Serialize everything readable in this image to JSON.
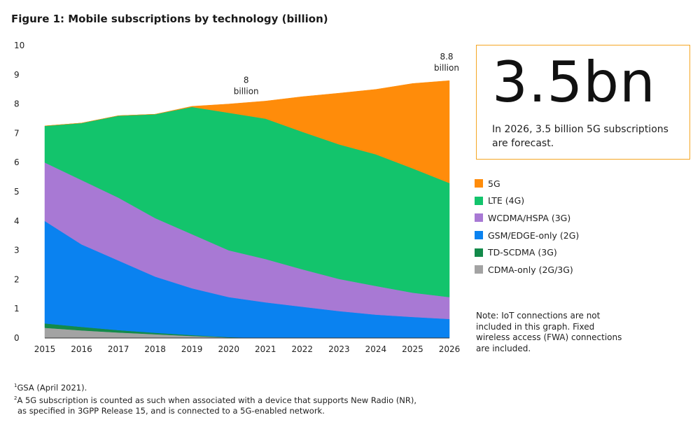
{
  "title": "Figure 1: Mobile subscriptions by technology (billion)",
  "colors": {
    "5g": "#ff8c0a",
    "lte": "#13c46c",
    "wcdma": "#a879d4",
    "gsm": "#0a82f0",
    "tdscdma": "#138a4a",
    "cdma": "#a3a3a3"
  },
  "callout": {
    "value": "3.5bn",
    "description": "In 2026, 3.5 billion 5G subscriptions are forecast."
  },
  "legend": [
    {
      "key": "5g",
      "label": "5G"
    },
    {
      "key": "lte",
      "label": "LTE (4G)"
    },
    {
      "key": "wcdma",
      "label": "WCDMA/HSPA (3G)"
    },
    {
      "key": "gsm",
      "label": "GSM/EDGE-only (2G)"
    },
    {
      "key": "tdscdma",
      "label": "TD-SCDMA (3G)"
    },
    {
      "key": "cdma",
      "label": "CDMA-only (2G/3G)"
    }
  ],
  "note": "Note: IoT connections are not included in this graph. Fixed wireless access (FWA) connections are included.",
  "footnotes": [
    {
      "sup": "1",
      "text": "GSA (April 2021)."
    },
    {
      "sup": "2",
      "text": "A 5G subscription is counted as such when associated with a device that supports New Radio (NR),"
    },
    {
      "sup": "",
      "text": "as specified in 3GPP Release 15, and is connected to a 5G-enabled network."
    }
  ],
  "chart_data": {
    "type": "area",
    "stacked": true,
    "x": [
      "2015",
      "2016",
      "2017",
      "2018",
      "2019",
      "2020",
      "2021",
      "2022",
      "2023",
      "2024",
      "2025",
      "2026"
    ],
    "ylim": [
      0,
      10
    ],
    "yticks": [
      "0",
      "1",
      "2",
      "3",
      "4",
      "5",
      "6",
      "7",
      "8",
      "9",
      "10"
    ],
    "grid": false,
    "series": [
      {
        "name": "CDMA-only (2G/3G)",
        "key": "cdma",
        "values": [
          0.35,
          0.26,
          0.19,
          0.13,
          0.07,
          0.02,
          0.0,
          0.0,
          0.0,
          0.0,
          0.0,
          0.0
        ]
      },
      {
        "name": "TD-SCDMA (3G)",
        "key": "tdscdma",
        "values": [
          0.15,
          0.12,
          0.08,
          0.05,
          0.03,
          0.01,
          0.0,
          0.0,
          0.0,
          0.0,
          0.0,
          0.0
        ]
      },
      {
        "name": "GSM/EDGE-only (2G)",
        "key": "gsm",
        "values": [
          3.5,
          2.82,
          2.38,
          1.92,
          1.6,
          1.37,
          1.22,
          1.07,
          0.92,
          0.8,
          0.72,
          0.65
        ]
      },
      {
        "name": "WCDMA/HSPA (3G)",
        "key": "wcdma",
        "values": [
          2.0,
          2.2,
          2.15,
          2.0,
          1.85,
          1.6,
          1.48,
          1.28,
          1.1,
          0.98,
          0.83,
          0.75
        ]
      },
      {
        "name": "LTE (4G)",
        "key": "lte",
        "values": [
          1.25,
          1.95,
          2.8,
          3.55,
          4.35,
          4.7,
          4.8,
          4.7,
          4.6,
          4.5,
          4.25,
          3.9
        ]
      },
      {
        "name": "5G",
        "key": "5g",
        "values": [
          0.0,
          0.0,
          0.0,
          0.0,
          0.02,
          0.3,
          0.6,
          1.2,
          1.75,
          2.22,
          2.9,
          3.5
        ]
      }
    ],
    "annotations": [
      {
        "x": "2020",
        "lines": [
          "8",
          "billion"
        ]
      },
      {
        "x": "2026",
        "lines": [
          "8.8",
          "billion"
        ]
      }
    ]
  }
}
